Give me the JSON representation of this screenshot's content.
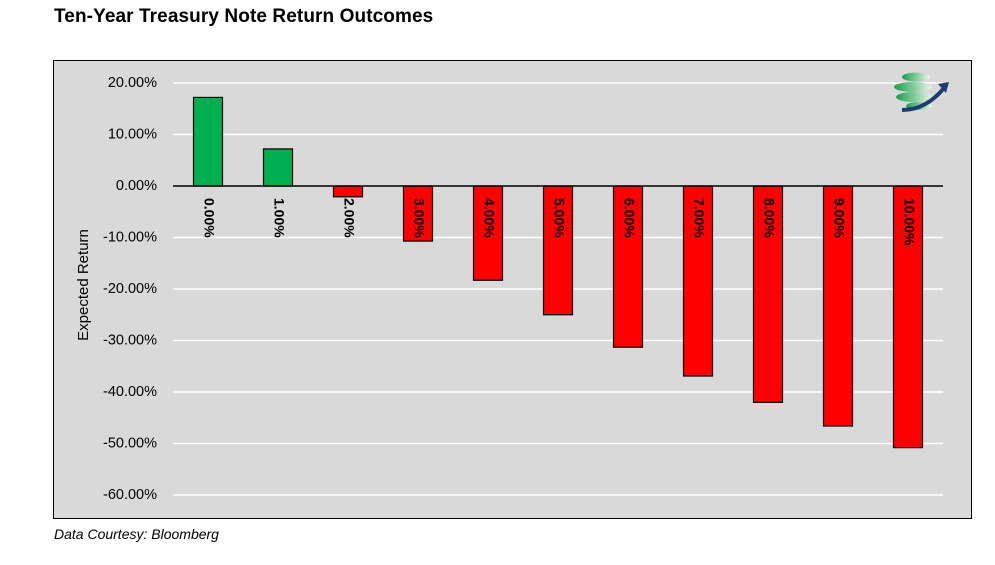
{
  "title": "Ten-Year Treasury Note Return Outcomes",
  "footnote": "Data Courtesy: Bloomberg",
  "colors": {
    "positive": "#00b050",
    "negative": "#ff0000",
    "plot_bg": "#d9d9d9",
    "grid": "#ffffff"
  },
  "logo_icon": "globe-arrow-logo-icon",
  "chart_data": {
    "type": "bar",
    "title": "Ten-Year Treasury Note Return Outcomes",
    "xlabel": "",
    "ylabel": "Expected Return",
    "categories": [
      "0.00%",
      "1.00%",
      "2.00%",
      "3.00%",
      "4.00%",
      "5.00%",
      "6.00%",
      "7.00%",
      "8.00%",
      "9.00%",
      "10.00%"
    ],
    "values": [
      17.2,
      7.2,
      -2.1,
      -10.7,
      -18.3,
      -25.0,
      -31.3,
      -36.9,
      -42.0,
      -46.6,
      -50.8
    ],
    "ylim": [
      -60,
      20
    ],
    "yticks": [
      "20.00%",
      "10.00%",
      "0.00%",
      "-10.00%",
      "-20.00%",
      "-30.00%",
      "-40.00%",
      "-50.00%",
      "-60.00%"
    ],
    "ytick_values": [
      20,
      10,
      0,
      -10,
      -20,
      -30,
      -40,
      -50,
      -60
    ],
    "grid": true,
    "legend": "none",
    "category_labels_position": "rotated-below-zero-line"
  }
}
